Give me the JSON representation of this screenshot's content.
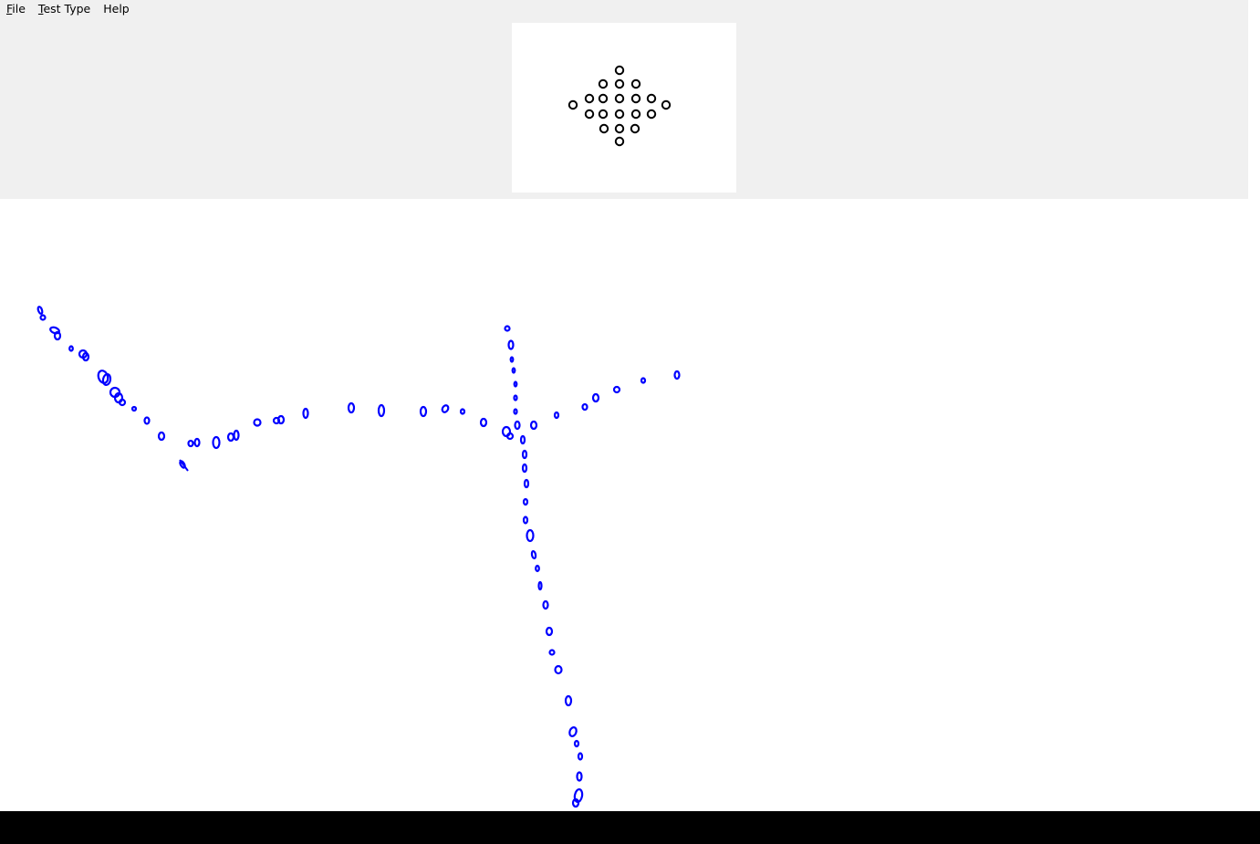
{
  "menu": {
    "items": [
      {
        "accel": "F",
        "rest": "ile"
      },
      {
        "accel": "T",
        "rest": "est Type"
      },
      {
        "accel": "",
        "rest": "Help"
      }
    ]
  },
  "pattern": {
    "shape": "diamond",
    "marker": "circle-outline",
    "marker_color": "#000000",
    "row_counts": [
      1,
      3,
      5,
      5,
      3,
      1
    ],
    "side_markers": 2
  },
  "trace": {
    "color": "#0000ff",
    "description_icon": "pen-stroke"
  },
  "colors": {
    "panel_bg": "#f0f0f0",
    "canvas_bg": "#ffffff",
    "taskbar": "#000000"
  }
}
